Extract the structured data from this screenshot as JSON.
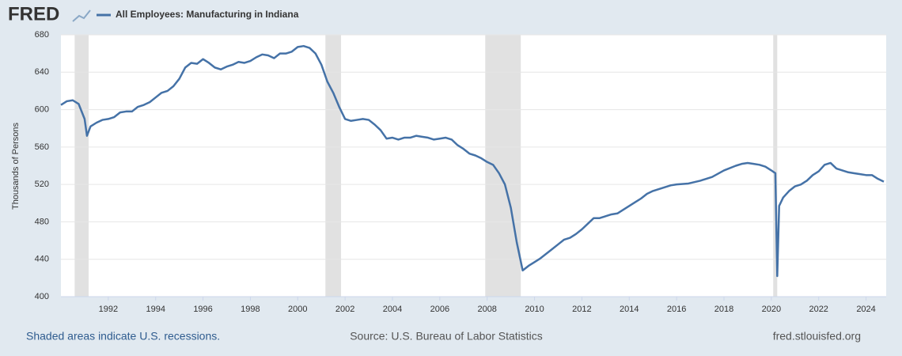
{
  "logo": "FRED",
  "footer": {
    "left": "Shaded areas indicate U.S. recessions.",
    "center": "Source: U.S. Bureau of Labor Statistics",
    "right": "fred.stlouisfed.org"
  },
  "chart_data": {
    "type": "line",
    "ylabel": "Thousands of Persons",
    "xlim": [
      1990,
      2024.85
    ],
    "xticks": [
      1992,
      1994,
      1996,
      1998,
      2000,
      2002,
      2004,
      2006,
      2008,
      2010,
      2012,
      2014,
      2016,
      2018,
      2020,
      2022,
      2024
    ],
    "ylim": [
      400,
      680
    ],
    "yticks": [
      400,
      440,
      480,
      520,
      560,
      600,
      640,
      680
    ],
    "grid": true,
    "recessions": [
      [
        1990.58,
        1991.17
      ],
      [
        2001.17,
        2001.83
      ],
      [
        2007.92,
        2009.42
      ],
      [
        2020.08,
        2020.25
      ]
    ],
    "x": [
      1990,
      1990.25,
      1990.5,
      1990.75,
      1991,
      1991.1,
      1991.25,
      1991.5,
      1991.75,
      1992,
      1992.25,
      1992.5,
      1992.75,
      1993,
      1993.25,
      1993.5,
      1993.75,
      1994,
      1994.25,
      1994.5,
      1994.75,
      1995,
      1995.25,
      1995.5,
      1995.75,
      1996,
      1996.25,
      1996.5,
      1996.75,
      1997,
      1997.25,
      1997.5,
      1997.75,
      1998,
      1998.25,
      1998.5,
      1998.75,
      1999,
      1999.25,
      1999.5,
      1999.75,
      2000,
      2000.25,
      2000.5,
      2000.75,
      2001,
      2001.25,
      2001.5,
      2001.75,
      2002,
      2002.25,
      2002.5,
      2002.75,
      2003,
      2003.25,
      2003.5,
      2003.75,
      2004,
      2004.25,
      2004.5,
      2004.75,
      2005,
      2005.25,
      2005.5,
      2005.75,
      2006,
      2006.25,
      2006.5,
      2006.75,
      2007,
      2007.25,
      2007.5,
      2007.75,
      2008,
      2008.25,
      2008.5,
      2008.75,
      2009,
      2009.25,
      2009.5,
      2009.75,
      2010,
      2010.25,
      2010.5,
      2010.75,
      2011,
      2011.25,
      2011.5,
      2011.75,
      2012,
      2012.25,
      2012.5,
      2012.75,
      2013,
      2013.25,
      2013.5,
      2013.75,
      2014,
      2014.25,
      2014.5,
      2014.75,
      2015,
      2015.25,
      2015.5,
      2015.75,
      2016,
      2016.5,
      2017,
      2017.5,
      2018,
      2018.5,
      2018.75,
      2019,
      2019.25,
      2019.5,
      2019.75,
      2020,
      2020.17,
      2020.25,
      2020.33,
      2020.5,
      2020.75,
      2021,
      2021.25,
      2021.5,
      2021.75,
      2022,
      2022.25,
      2022.5,
      2022.75,
      2023,
      2023.25,
      2023.5,
      2023.75,
      2024,
      2024.25,
      2024.5,
      2024.75
    ],
    "series": [
      {
        "name": "All Employees: Manufacturing in Indiana",
        "color": "#4572a7",
        "values": [
          605,
          609,
          610,
          606,
          590,
          572,
          582,
          586,
          589,
          590,
          592,
          597,
          598,
          598,
          603,
          605,
          608,
          613,
          618,
          620,
          625,
          633,
          645,
          650,
          649,
          654,
          650,
          645,
          643,
          646,
          648,
          651,
          650,
          652,
          656,
          659,
          658,
          655,
          660,
          660,
          662,
          667,
          668,
          666,
          660,
          648,
          630,
          618,
          603,
          590,
          588,
          589,
          590,
          589,
          584,
          578,
          569,
          570,
          568,
          570,
          570,
          572,
          571,
          570,
          568,
          569,
          570,
          568,
          562,
          558,
          553,
          551,
          548,
          544,
          541,
          532,
          520,
          495,
          458,
          428,
          433,
          437,
          441,
          446,
          451,
          456,
          461,
          463,
          467,
          472,
          478,
          484,
          484,
          486,
          488,
          489,
          493,
          497,
          501,
          505,
          510,
          513,
          515,
          517,
          519,
          520,
          521,
          524,
          528,
          535,
          540,
          542,
          543,
          542,
          541,
          539,
          535,
          532,
          422,
          497,
          506,
          513,
          518,
          520,
          524,
          530,
          534,
          541,
          543,
          537,
          535,
          533,
          532,
          531,
          530,
          530,
          526,
          523
        ]
      }
    ]
  }
}
